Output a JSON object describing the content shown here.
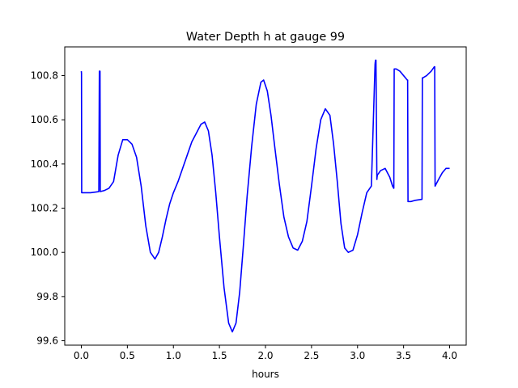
{
  "chart_data": {
    "type": "line",
    "title": "Water Depth h at gauge 99",
    "xlabel": "hours",
    "ylabel": "",
    "xlim": [
      -0.18,
      4.18
    ],
    "ylim": [
      99.58,
      100.93
    ],
    "xticks": [
      0.0,
      0.5,
      1.0,
      1.5,
      2.0,
      2.5,
      3.0,
      3.5,
      4.0
    ],
    "xtick_labels": [
      "0.0",
      "0.5",
      "1.0",
      "1.5",
      "2.0",
      "2.5",
      "3.0",
      "3.5",
      "4.0"
    ],
    "yticks": [
      99.6,
      99.8,
      100.0,
      100.2,
      100.4,
      100.6,
      100.8
    ],
    "ytick_labels": [
      "99.6",
      "99.8",
      "100.0",
      "100.2",
      "100.4",
      "100.6",
      "100.8"
    ],
    "grid": false,
    "series": [
      {
        "color": "#0000ff",
        "x": [
          0.0,
          0.002,
          0.004,
          0.1,
          0.19,
          0.196,
          0.2,
          0.203,
          0.206,
          0.25,
          0.3,
          0.35,
          0.4,
          0.45,
          0.5,
          0.55,
          0.6,
          0.65,
          0.7,
          0.75,
          0.8,
          0.84,
          0.88,
          0.92,
          0.96,
          1.0,
          1.05,
          1.1,
          1.15,
          1.2,
          1.25,
          1.3,
          1.34,
          1.38,
          1.42,
          1.46,
          1.5,
          1.55,
          1.6,
          1.64,
          1.68,
          1.72,
          1.76,
          1.8,
          1.85,
          1.9,
          1.95,
          1.98,
          2.02,
          2.06,
          2.1,
          2.15,
          2.2,
          2.25,
          2.3,
          2.35,
          2.4,
          2.45,
          2.5,
          2.55,
          2.6,
          2.65,
          2.7,
          2.74,
          2.78,
          2.82,
          2.86,
          2.9,
          2.95,
          3.0,
          3.05,
          3.1,
          3.15,
          3.19,
          3.192,
          3.196,
          3.2,
          3.21,
          3.212,
          3.216,
          3.25,
          3.3,
          3.35,
          3.38,
          3.394,
          3.398,
          3.42,
          3.46,
          3.54,
          3.544,
          3.548,
          3.58,
          3.62,
          3.7,
          3.704,
          3.71,
          3.75,
          3.8,
          3.834,
          3.838,
          3.842,
          3.88,
          3.92,
          3.96,
          4.0
        ],
        "y": [
          100.82,
          100.81,
          100.27,
          100.27,
          100.275,
          100.82,
          100.82,
          100.82,
          100.275,
          100.28,
          100.29,
          100.32,
          100.44,
          100.51,
          100.51,
          100.49,
          100.43,
          100.3,
          100.12,
          100.0,
          99.97,
          100.0,
          100.07,
          100.15,
          100.22,
          100.27,
          100.32,
          100.38,
          100.44,
          100.5,
          100.54,
          100.58,
          100.59,
          100.55,
          100.44,
          100.27,
          100.07,
          99.84,
          99.68,
          99.64,
          99.68,
          99.82,
          100.03,
          100.25,
          100.48,
          100.67,
          100.77,
          100.78,
          100.73,
          100.62,
          100.48,
          100.31,
          100.16,
          100.07,
          100.02,
          100.01,
          100.05,
          100.14,
          100.3,
          100.47,
          100.6,
          100.65,
          100.62,
          100.49,
          100.32,
          100.13,
          100.02,
          100.0,
          100.01,
          100.08,
          100.18,
          100.27,
          100.3,
          100.85,
          100.86,
          100.87,
          100.87,
          100.33,
          100.34,
          100.35,
          100.37,
          100.38,
          100.34,
          100.3,
          100.29,
          100.83,
          100.83,
          100.82,
          100.78,
          100.78,
          100.23,
          100.23,
          100.235,
          100.24,
          100.79,
          100.79,
          100.8,
          100.82,
          100.84,
          100.84,
          100.3,
          100.33,
          100.36,
          100.38,
          100.38
        ]
      }
    ]
  }
}
